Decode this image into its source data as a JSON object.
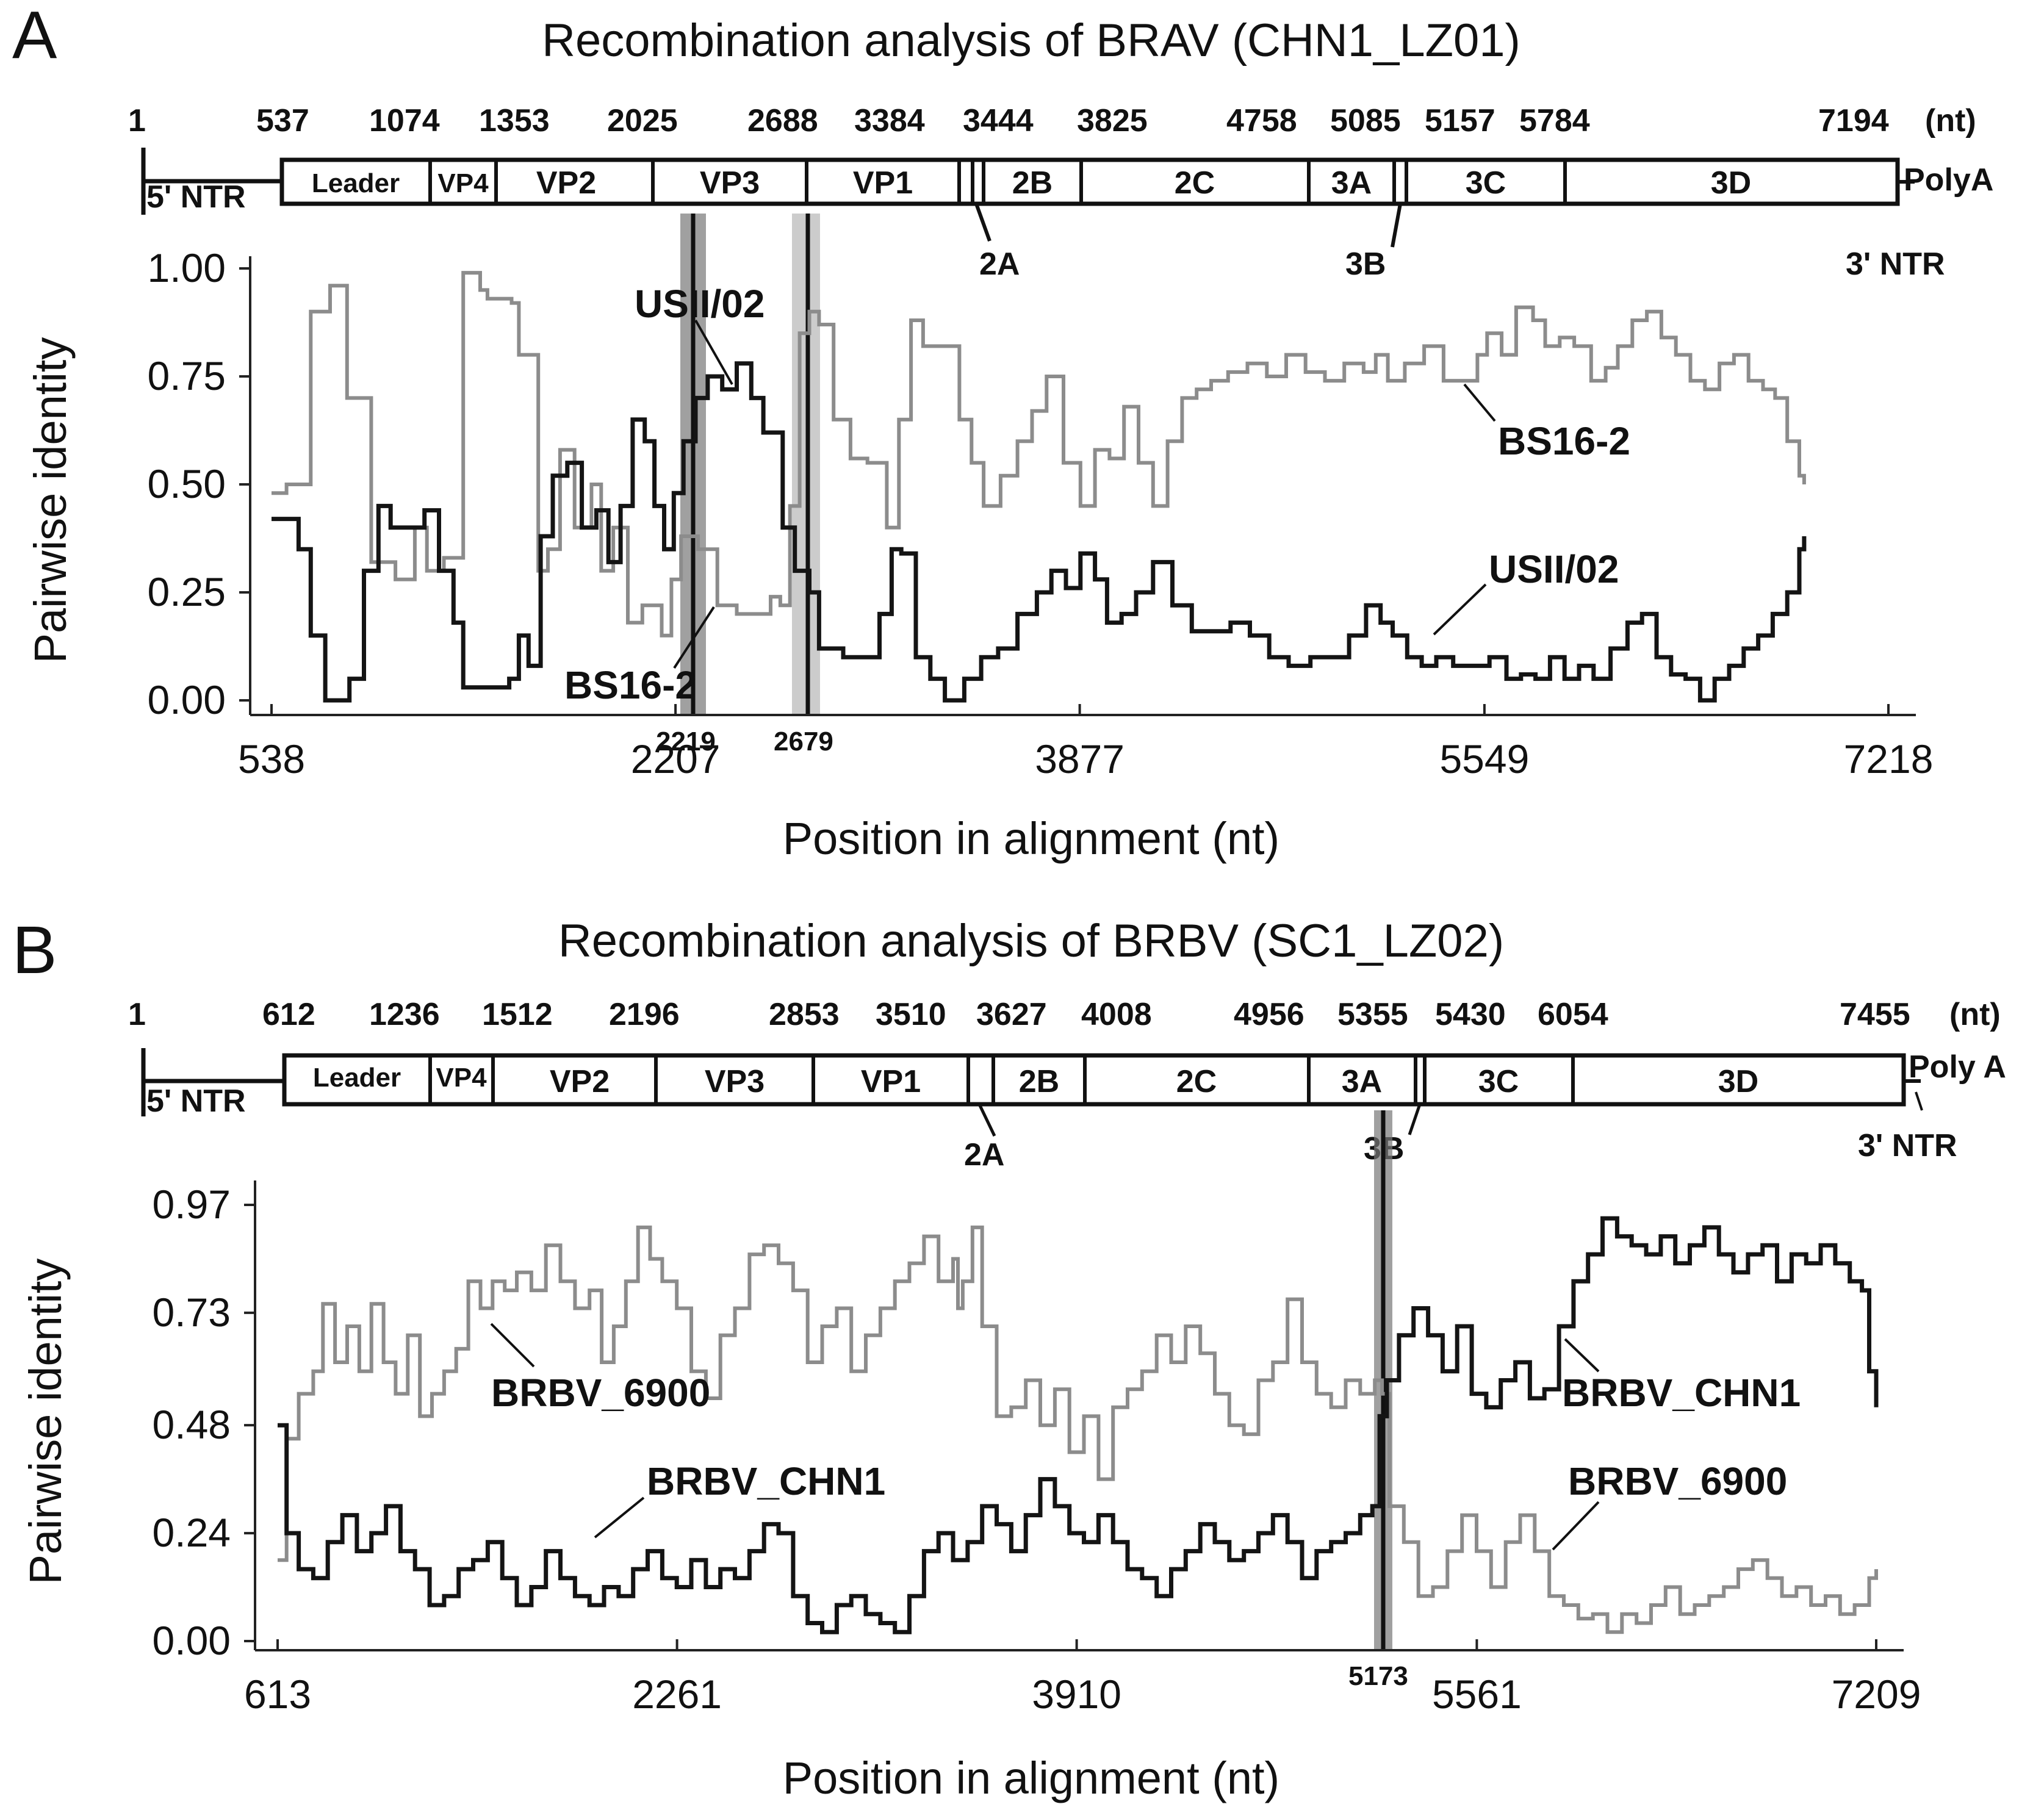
{
  "chart_data": [
    {
      "panel": "A",
      "type": "line",
      "title": "Recombination analysis of BRAV (CHN1_LZ01)",
      "genome": {
        "start": "1",
        "unit": "(nt)",
        "five_ntr": "5' NTR",
        "three_ntr": "3' NTR",
        "polya": "PolyA",
        "positions": [
          "537",
          "1074",
          "1353",
          "2025",
          "2688",
          "3384",
          "3444",
          "3825",
          "4758",
          "5085",
          "5157",
          "5784",
          "7194"
        ],
        "genes": [
          "Leader",
          "VP4",
          "VP2",
          "VP3",
          "VP1",
          "2B",
          "2C",
          "3A",
          "3C",
          "3D"
        ],
        "small_labels": [
          "2A",
          "3B"
        ]
      },
      "xlabel": "Position in alignment (nt)",
      "ylabel": "Pairwise identity",
      "x_ticks": [
        "538",
        "2207",
        "3877",
        "5549",
        "7218"
      ],
      "y_ticks": [
        "0.00",
        "0.25",
        "0.50",
        "0.75",
        "1.00"
      ],
      "xlim": [
        538,
        7218
      ],
      "ylim": [
        0,
        1
      ],
      "breakpoints": [
        "2219",
        "2679"
      ],
      "series": [
        {
          "name": "BS16-2",
          "color": "#8c8c8c",
          "x": [
            538,
            600,
            700,
            780,
            850,
            950,
            1050,
            1130,
            1180,
            1250,
            1330,
            1400,
            1430,
            1530,
            1560,
            1640,
            1680,
            1730,
            1790,
            1860,
            1900,
            1950,
            2010,
            2070,
            2150,
            2190,
            2230,
            2300,
            2380,
            2460,
            2550,
            2600,
            2640,
            2680,
            2720,
            2760,
            2800,
            2860,
            2930,
            3000,
            3080,
            3130,
            3180,
            3230,
            3300,
            3380,
            3430,
            3480,
            3550,
            3620,
            3680,
            3740,
            3810,
            3880,
            3940,
            4000,
            4060,
            4120,
            4180,
            4240,
            4300,
            4360,
            4420,
            4490,
            4570,
            4650,
            4730,
            4810,
            4890,
            4970,
            5050,
            5100,
            5150,
            5220,
            5300,
            5380,
            5450,
            5520,
            5560,
            5620,
            5680,
            5750,
            5800,
            5860,
            5920,
            5990,
            6050,
            6100,
            6160,
            6220,
            6280,
            6340,
            6400,
            6460,
            6520,
            6580,
            6640,
            6700,
            6750,
            6800,
            6850,
            6870
          ],
          "values": [
            0.48,
            0.5,
            0.9,
            0.96,
            0.7,
            0.32,
            0.28,
            0.4,
            0.3,
            0.33,
            0.99,
            0.95,
            0.93,
            0.92,
            0.8,
            0.3,
            0.35,
            0.58,
            0.4,
            0.5,
            0.3,
            0.4,
            0.18,
            0.22,
            0.15,
            0.28,
            0.38,
            0.35,
            0.22,
            0.2,
            0.2,
            0.24,
            0.22,
            0.45,
            0.85,
            0.9,
            0.87,
            0.65,
            0.56,
            0.55,
            0.4,
            0.65,
            0.88,
            0.82,
            0.82,
            0.65,
            0.55,
            0.45,
            0.52,
            0.6,
            0.67,
            0.75,
            0.55,
            0.45,
            0.58,
            0.56,
            0.68,
            0.55,
            0.45,
            0.6,
            0.7,
            0.72,
            0.74,
            0.76,
            0.78,
            0.75,
            0.8,
            0.76,
            0.74,
            0.78,
            0.76,
            0.8,
            0.74,
            0.78,
            0.82,
            0.74,
            0.74,
            0.8,
            0.85,
            0.8,
            0.91,
            0.88,
            0.82,
            0.84,
            0.82,
            0.74,
            0.77,
            0.82,
            0.88,
            0.9,
            0.84,
            0.8,
            0.74,
            0.72,
            0.78,
            0.8,
            0.74,
            0.72,
            0.7,
            0.6,
            0.52,
            0.5
          ]
        },
        {
          "name": "USII/02",
          "color": "#141414",
          "x": [
            538,
            600,
            650,
            700,
            760,
            810,
            860,
            920,
            980,
            1030,
            1100,
            1170,
            1230,
            1290,
            1330,
            1380,
            1450,
            1520,
            1560,
            1600,
            1650,
            1700,
            1760,
            1820,
            1880,
            1930,
            1980,
            2030,
            2080,
            2120,
            2160,
            2200,
            2240,
            2290,
            2340,
            2400,
            2460,
            2520,
            2570,
            2610,
            2650,
            2700,
            2760,
            2800,
            2900,
            3000,
            3050,
            3100,
            3140,
            3200,
            3260,
            3320,
            3400,
            3470,
            3540,
            3620,
            3700,
            3760,
            3820,
            3880,
            3940,
            3990,
            4050,
            4110,
            4180,
            4260,
            4340,
            4420,
            4500,
            4580,
            4660,
            4740,
            4830,
            4910,
            4990,
            5060,
            5120,
            5170,
            5230,
            5290,
            5350,
            5420,
            5500,
            5570,
            5640,
            5700,
            5760,
            5820,
            5880,
            5940,
            6000,
            6070,
            6140,
            6200,
            6260,
            6320,
            6380,
            6440,
            6500,
            6560,
            6620,
            6680,
            6740,
            6800,
            6850,
            6870
          ],
          "values": [
            0.42,
            0.42,
            0.35,
            0.15,
            0.0,
            0.0,
            0.05,
            0.3,
            0.45,
            0.4,
            0.4,
            0.44,
            0.3,
            0.18,
            0.03,
            0.03,
            0.03,
            0.05,
            0.15,
            0.08,
            0.38,
            0.52,
            0.55,
            0.4,
            0.44,
            0.32,
            0.45,
            0.65,
            0.6,
            0.45,
            0.35,
            0.48,
            0.6,
            0.7,
            0.75,
            0.72,
            0.78,
            0.7,
            0.62,
            0.62,
            0.4,
            0.3,
            0.25,
            0.12,
            0.1,
            0.1,
            0.2,
            0.35,
            0.34,
            0.1,
            0.05,
            0.0,
            0.05,
            0.1,
            0.12,
            0.2,
            0.25,
            0.3,
            0.26,
            0.34,
            0.28,
            0.18,
            0.2,
            0.25,
            0.32,
            0.22,
            0.16,
            0.16,
            0.18,
            0.15,
            0.1,
            0.08,
            0.1,
            0.1,
            0.15,
            0.22,
            0.18,
            0.15,
            0.1,
            0.08,
            0.1,
            0.08,
            0.08,
            0.1,
            0.05,
            0.06,
            0.05,
            0.1,
            0.05,
            0.08,
            0.05,
            0.12,
            0.18,
            0.2,
            0.1,
            0.06,
            0.05,
            0.0,
            0.05,
            0.08,
            0.12,
            0.15,
            0.2,
            0.25,
            0.35,
            0.38
          ]
        }
      ],
      "annotations": [
        "USII/02",
        "BS16-2",
        "USII/02",
        "BS16-2"
      ]
    },
    {
      "panel": "B",
      "type": "line",
      "title": "Recombination analysis of  BRBV (SC1_LZ02)",
      "genome": {
        "start": "1",
        "unit": "(nt)",
        "five_ntr": "5' NTR",
        "three_ntr": "3' NTR",
        "polya": "Poly A",
        "positions": [
          "612",
          "1236",
          "1512",
          "2196",
          "2853",
          "3510",
          "3627",
          "4008",
          "4956",
          "5355",
          "5430",
          "6054",
          "7455"
        ],
        "genes": [
          "Leader",
          "VP4",
          "VP2",
          "VP3",
          "VP1",
          "2B",
          "2C",
          "3A",
          "3C",
          "3D"
        ],
        "small_labels": [
          "2A",
          "3B"
        ]
      },
      "xlabel": "Position in alignment (nt)",
      "ylabel": "Pairwise identity",
      "x_ticks": [
        "613",
        "2261",
        "3910",
        "5561",
        "7209"
      ],
      "y_ticks": [
        "0.00",
        "0.24",
        "0.48",
        "0.73",
        "0.97"
      ],
      "xlim": [
        613,
        7209
      ],
      "ylim": [
        0,
        0.97
      ],
      "breakpoints": [
        "5173"
      ],
      "series": [
        {
          "name": "BRBV_6900",
          "color": "#8c8c8c",
          "x": [
            613,
            650,
            700,
            760,
            800,
            850,
            900,
            950,
            1000,
            1050,
            1100,
            1150,
            1200,
            1250,
            1300,
            1350,
            1400,
            1450,
            1500,
            1550,
            1600,
            1660,
            1720,
            1780,
            1840,
            1900,
            1950,
            2000,
            2050,
            2100,
            2150,
            2200,
            2260,
            2320,
            2380,
            2440,
            2500,
            2560,
            2620,
            2680,
            2740,
            2800,
            2860,
            2920,
            2980,
            3040,
            3100,
            3160,
            3220,
            3280,
            3340,
            3400,
            3420,
            3440,
            3480,
            3520,
            3580,
            3640,
            3700,
            3760,
            3820,
            3880,
            3940,
            4000,
            4060,
            4120,
            4180,
            4240,
            4300,
            4360,
            4420,
            4480,
            4540,
            4600,
            4660,
            4720,
            4780,
            4840,
            4900,
            4960,
            5020,
            5080,
            5140,
            5170,
            5200,
            5260,
            5320,
            5380,
            5440,
            5500,
            5560,
            5620,
            5680,
            5740,
            5800,
            5860,
            5920,
            5980,
            6040,
            6100,
            6160,
            6220,
            6280,
            6340,
            6400,
            6460,
            6520,
            6580,
            6640,
            6700,
            6760,
            6820,
            6880,
            6940,
            7000,
            7060,
            7120,
            7180,
            7209
          ],
          "values": [
            0.18,
            0.45,
            0.55,
            0.6,
            0.75,
            0.62,
            0.7,
            0.6,
            0.75,
            0.62,
            0.55,
            0.68,
            0.5,
            0.55,
            0.6,
            0.65,
            0.8,
            0.74,
            0.8,
            0.78,
            0.82,
            0.78,
            0.88,
            0.8,
            0.74,
            0.78,
            0.62,
            0.7,
            0.8,
            0.92,
            0.85,
            0.8,
            0.74,
            0.6,
            0.54,
            0.68,
            0.74,
            0.86,
            0.88,
            0.84,
            0.78,
            0.62,
            0.7,
            0.74,
            0.6,
            0.68,
            0.74,
            0.8,
            0.84,
            0.9,
            0.8,
            0.85,
            0.74,
            0.8,
            0.92,
            0.7,
            0.5,
            0.52,
            0.58,
            0.48,
            0.56,
            0.42,
            0.5,
            0.36,
            0.52,
            0.56,
            0.6,
            0.68,
            0.62,
            0.7,
            0.64,
            0.55,
            0.48,
            0.46,
            0.58,
            0.62,
            0.76,
            0.62,
            0.55,
            0.52,
            0.58,
            0.55,
            0.58,
            0.55,
            0.3,
            0.22,
            0.1,
            0.12,
            0.2,
            0.28,
            0.2,
            0.12,
            0.22,
            0.28,
            0.2,
            0.1,
            0.08,
            0.05,
            0.06,
            0.02,
            0.06,
            0.04,
            0.08,
            0.12,
            0.06,
            0.08,
            0.1,
            0.12,
            0.16,
            0.18,
            0.14,
            0.1,
            0.12,
            0.08,
            0.1,
            0.06,
            0.08,
            0.14,
            0.16
          ]
        },
        {
          "name": "BRBV_CHN1",
          "color": "#141414",
          "x": [
            613,
            650,
            700,
            760,
            820,
            880,
            940,
            1000,
            1060,
            1120,
            1180,
            1240,
            1300,
            1360,
            1420,
            1480,
            1540,
            1600,
            1660,
            1720,
            1780,
            1840,
            1900,
            1960,
            2020,
            2080,
            2140,
            2200,
            2260,
            2320,
            2380,
            2440,
            2500,
            2560,
            2620,
            2680,
            2740,
            2800,
            2860,
            2920,
            2980,
            3040,
            3100,
            3160,
            3220,
            3280,
            3340,
            3400,
            3460,
            3520,
            3580,
            3640,
            3700,
            3760,
            3820,
            3880,
            3940,
            4000,
            4060,
            4120,
            4180,
            4240,
            4300,
            4360,
            4420,
            4480,
            4540,
            4600,
            4660,
            4720,
            4780,
            4840,
            4900,
            4960,
            5020,
            5080,
            5130,
            5160,
            5190,
            5240,
            5300,
            5360,
            5420,
            5480,
            5540,
            5600,
            5660,
            5720,
            5780,
            5840,
            5900,
            5960,
            6020,
            6080,
            6140,
            6200,
            6260,
            6320,
            6380,
            6440,
            6500,
            6560,
            6620,
            6680,
            6740,
            6800,
            6860,
            6920,
            6980,
            7040,
            7100,
            7150,
            7180,
            7209
          ],
          "values": [
            0.48,
            0.24,
            0.16,
            0.14,
            0.22,
            0.28,
            0.2,
            0.24,
            0.3,
            0.2,
            0.16,
            0.08,
            0.1,
            0.16,
            0.18,
            0.22,
            0.14,
            0.08,
            0.12,
            0.2,
            0.14,
            0.1,
            0.08,
            0.12,
            0.1,
            0.16,
            0.2,
            0.14,
            0.12,
            0.18,
            0.12,
            0.16,
            0.14,
            0.2,
            0.26,
            0.24,
            0.1,
            0.04,
            0.02,
            0.08,
            0.1,
            0.06,
            0.04,
            0.02,
            0.1,
            0.2,
            0.24,
            0.18,
            0.22,
            0.3,
            0.26,
            0.2,
            0.28,
            0.36,
            0.3,
            0.24,
            0.22,
            0.28,
            0.22,
            0.16,
            0.14,
            0.1,
            0.16,
            0.2,
            0.26,
            0.22,
            0.18,
            0.2,
            0.24,
            0.28,
            0.22,
            0.14,
            0.2,
            0.22,
            0.24,
            0.28,
            0.3,
            0.5,
            0.58,
            0.68,
            0.74,
            0.68,
            0.6,
            0.7,
            0.55,
            0.52,
            0.58,
            0.62,
            0.54,
            0.56,
            0.7,
            0.8,
            0.86,
            0.94,
            0.9,
            0.88,
            0.86,
            0.9,
            0.84,
            0.88,
            0.92,
            0.86,
            0.82,
            0.86,
            0.88,
            0.8,
            0.86,
            0.84,
            0.88,
            0.84,
            0.8,
            0.78,
            0.6,
            0.52
          ]
        }
      ],
      "annotations": [
        "BRBV_6900",
        "BRBV_CHN1",
        "BRBV_CHN1",
        "BRBV_6900"
      ]
    }
  ]
}
